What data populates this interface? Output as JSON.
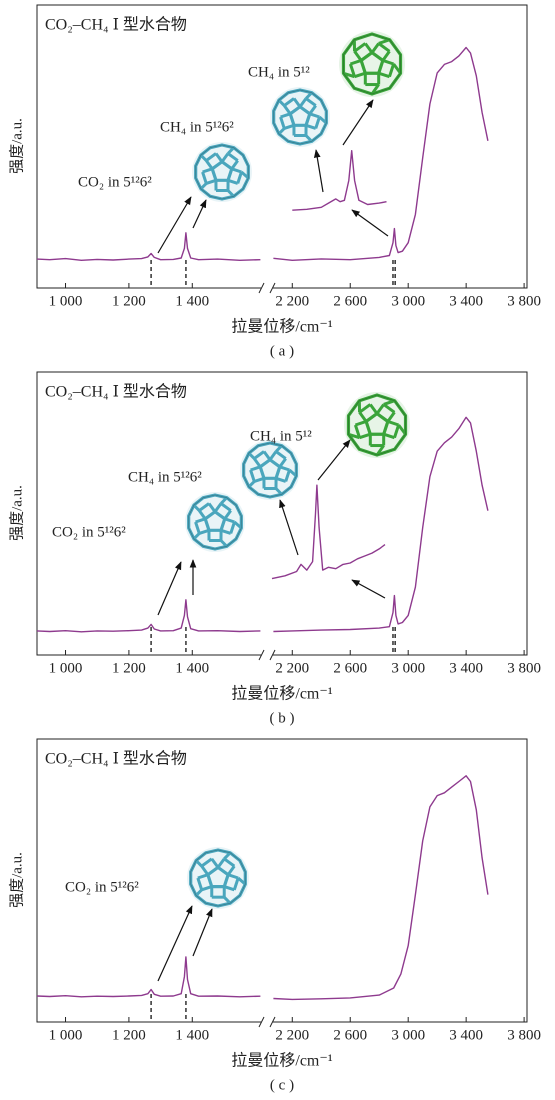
{
  "chart_data": [
    {
      "type": "line",
      "title": "CO₂–CH₄ Ⅰ 型水合物",
      "xlabel": "拉曼位移/cm⁻¹",
      "ylabel": "强度/a.u.",
      "caption": "( a )",
      "xlim": [
        [
          910,
          1620
        ],
        [
          2060,
          3820
        ]
      ],
      "ylim": [
        0,
        100
      ],
      "xticks": [
        {
          "value": 1000,
          "label": "1 000"
        },
        {
          "value": 1200,
          "label": "1 200"
        },
        {
          "value": 1400,
          "label": "1 400"
        },
        {
          "value": 2200,
          "label": "2 200"
        },
        {
          "value": 2600,
          "label": "2 600"
        },
        {
          "value": 3000,
          "label": "3 000"
        },
        {
          "value": 3400,
          "label": "3 400"
        },
        {
          "value": 3800,
          "label": "3 800"
        }
      ],
      "annotations": [
        "CO₂ in 5¹²6²",
        "CH₄ in 5¹²6²",
        "CH₄ in 5¹²"
      ],
      "peak_markers": [
        1270,
        1380,
        2895,
        2910
      ],
      "series": [
        {
          "color": "#8e3a8e",
          "x": [
            910,
            950,
            1000,
            1050,
            1100,
            1150,
            1200,
            1240,
            1260,
            1270,
            1280,
            1300,
            1340,
            1365,
            1375,
            1380,
            1385,
            1395,
            1420,
            1480,
            1550,
            1615
          ],
          "values": [
            10.2,
            10,
            10.4,
            9.8,
            10.1,
            9.9,
            10.2,
            10.4,
            11,
            12.2,
            10.8,
            10,
            10.1,
            10.6,
            14,
            19.5,
            14,
            10.6,
            10,
            10.2,
            9.8,
            10
          ]
        },
        {
          "color": "#8e3a8e",
          "x": [
            2070,
            2200,
            2400,
            2600,
            2800,
            2870,
            2895,
            2905,
            2915,
            2930,
            2960,
            3000,
            3050,
            3100,
            3150,
            3200,
            3250,
            3300,
            3350,
            3400,
            3430,
            3470,
            3510,
            3550
          ],
          "values": [
            10.5,
            9.8,
            10.3,
            10,
            10.8,
            11.5,
            16,
            21,
            15,
            12.5,
            13,
            16,
            26,
            46,
            65,
            76,
            79,
            80,
            82,
            85,
            83,
            75,
            62,
            52
          ]
        },
        {
          "color": "#8e3a8e",
          "x": [
            2200,
            2300,
            2400,
            2450,
            2500,
            2530,
            2560,
            2590,
            2610,
            2630,
            2660,
            2720,
            2800,
            2850
          ],
          "values": [
            27.5,
            27.8,
            28.5,
            30,
            31.5,
            30.5,
            31,
            38,
            48.5,
            38,
            31,
            29.5,
            30,
            30.5
          ]
        }
      ]
    },
    {
      "type": "line",
      "title": "CO₂–CH₄ Ⅰ 型水合物",
      "xlabel": "拉曼位移/cm⁻¹",
      "ylabel": "强度/a.u.",
      "caption": "( b )",
      "xlim": [
        [
          910,
          1620
        ],
        [
          2060,
          3820
        ]
      ],
      "ylim": [
        0,
        100
      ],
      "xticks": [
        {
          "value": 1000,
          "label": "1 000"
        },
        {
          "value": 1200,
          "label": "1 200"
        },
        {
          "value": 1400,
          "label": "1 400"
        },
        {
          "value": 2200,
          "label": "2 200"
        },
        {
          "value": 2600,
          "label": "2 600"
        },
        {
          "value": 3000,
          "label": "3 000"
        },
        {
          "value": 3400,
          "label": "3 400"
        },
        {
          "value": 3800,
          "label": "3 800"
        }
      ],
      "annotations": [
        "CO₂ in 5¹²6²",
        "CH₄ in 5¹²6²",
        "CH₄ in 5¹²"
      ],
      "peak_markers": [
        1270,
        1380,
        2895,
        2910
      ],
      "series": [
        {
          "color": "#8e3a8e",
          "x": [
            910,
            950,
            1000,
            1050,
            1100,
            1150,
            1200,
            1240,
            1260,
            1270,
            1280,
            1300,
            1340,
            1365,
            1375,
            1380,
            1385,
            1395,
            1420,
            1480,
            1550,
            1615
          ],
          "values": [
            8.5,
            8.3,
            8.6,
            8.2,
            8.5,
            8.4,
            8.6,
            8.8,
            9.5,
            10.8,
            9.2,
            8.5,
            8.6,
            9.5,
            14,
            19.5,
            13.5,
            9.3,
            8.5,
            8.6,
            8.3,
            8.5
          ]
        },
        {
          "color": "#8e3a8e",
          "x": [
            2070,
            2200,
            2400,
            2600,
            2800,
            2870,
            2895,
            2905,
            2915,
            2930,
            2960,
            3000,
            3050,
            3100,
            3150,
            3200,
            3250,
            3300,
            3350,
            3400,
            3430,
            3470,
            3510,
            3550
          ],
          "values": [
            8.3,
            8.5,
            8.8,
            9,
            9.5,
            10,
            15,
            21,
            14,
            11,
            11.5,
            14,
            24,
            45,
            63,
            72,
            75,
            77,
            80,
            84,
            82,
            72,
            60,
            51
          ]
        },
        {
          "color": "#8e3a8e",
          "x": [
            2060,
            2150,
            2230,
            2260,
            2300,
            2340,
            2360,
            2370,
            2385,
            2410,
            2450,
            2500,
            2550,
            2600,
            2650,
            2700,
            2750,
            2800,
            2840
          ],
          "values": [
            27,
            28,
            29.5,
            32,
            30,
            33,
            50,
            60,
            45,
            30,
            31,
            30.5,
            32,
            32.5,
            34,
            35,
            36,
            37.5,
            39
          ]
        }
      ]
    },
    {
      "type": "line",
      "title": "CO₂–CH₄ Ⅰ 型水合物",
      "xlabel": "拉曼位移/cm⁻¹",
      "ylabel": "强度/a.u.",
      "caption": "( c )",
      "xlim": [
        [
          910,
          1620
        ],
        [
          2060,
          3820
        ]
      ],
      "ylim": [
        0,
        100
      ],
      "xticks": [
        {
          "value": 1000,
          "label": "1 000"
        },
        {
          "value": 1200,
          "label": "1 200"
        },
        {
          "value": 1400,
          "label": "1 400"
        },
        {
          "value": 2200,
          "label": "2 200"
        },
        {
          "value": 2600,
          "label": "2 600"
        },
        {
          "value": 3000,
          "label": "3 000"
        },
        {
          "value": 3400,
          "label": "3 400"
        },
        {
          "value": 3800,
          "label": "3 800"
        }
      ],
      "annotations": [
        "CO₂ in 5¹²6²"
      ],
      "peak_markers": [
        1270,
        1380
      ],
      "series": [
        {
          "color": "#8e3a8e",
          "x": [
            910,
            950,
            1000,
            1050,
            1100,
            1150,
            1200,
            1240,
            1260,
            1270,
            1280,
            1300,
            1340,
            1365,
            1375,
            1380,
            1385,
            1395,
            1420,
            1480,
            1550,
            1615
          ],
          "values": [
            9.2,
            9,
            9.3,
            8.9,
            9.1,
            9,
            9.2,
            9.4,
            10,
            11.5,
            9.8,
            9.1,
            9.2,
            10,
            16,
            23,
            15,
            10,
            9.1,
            9.2,
            8.9,
            9.1
          ]
        },
        {
          "color": "#8e3a8e",
          "x": [
            2070,
            2200,
            2400,
            2600,
            2800,
            2900,
            2950,
            3000,
            3050,
            3100,
            3150,
            3200,
            3250,
            3300,
            3350,
            3400,
            3430,
            3470,
            3510,
            3550
          ],
          "values": [
            8.3,
            8,
            8.2,
            8.5,
            9.5,
            12,
            17,
            27,
            45,
            64,
            76,
            80,
            81,
            83,
            85,
            87,
            85,
            75,
            58,
            45
          ]
        }
      ]
    }
  ]
}
